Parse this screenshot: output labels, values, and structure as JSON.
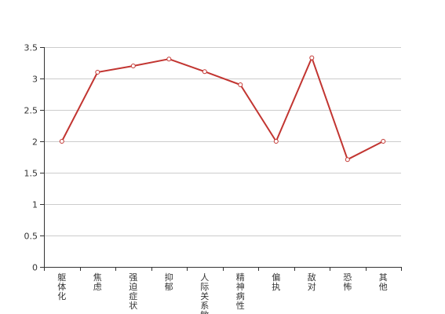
{
  "chart_data": {
    "type": "line",
    "categories": [
      "躯体化",
      "焦虑",
      "强迫症状",
      "抑郁",
      "人际关系敏感",
      "精神病性",
      "偏执",
      "敌对",
      "恐怖",
      "其他"
    ],
    "series": [
      {
        "values": [
          2.0,
          3.1,
          3.2,
          3.31,
          3.11,
          2.9,
          2.0,
          3.33,
          1.71,
          2.0
        ]
      }
    ],
    "ylim": [
      0,
      3.5
    ],
    "yticks": [
      0,
      0.5,
      1,
      1.5,
      2,
      2.5,
      3,
      3.5
    ],
    "ytick_labels": [
      "0",
      "0.5",
      "1",
      "1.5",
      "2",
      "2.5",
      "3",
      "3.5"
    ],
    "grid": true,
    "colors": {
      "line": "#c23531",
      "marker_fill": "#ffffff",
      "grid": "#cccccc",
      "axis": "#333333"
    },
    "title": "",
    "xlabel": "",
    "ylabel": ""
  }
}
